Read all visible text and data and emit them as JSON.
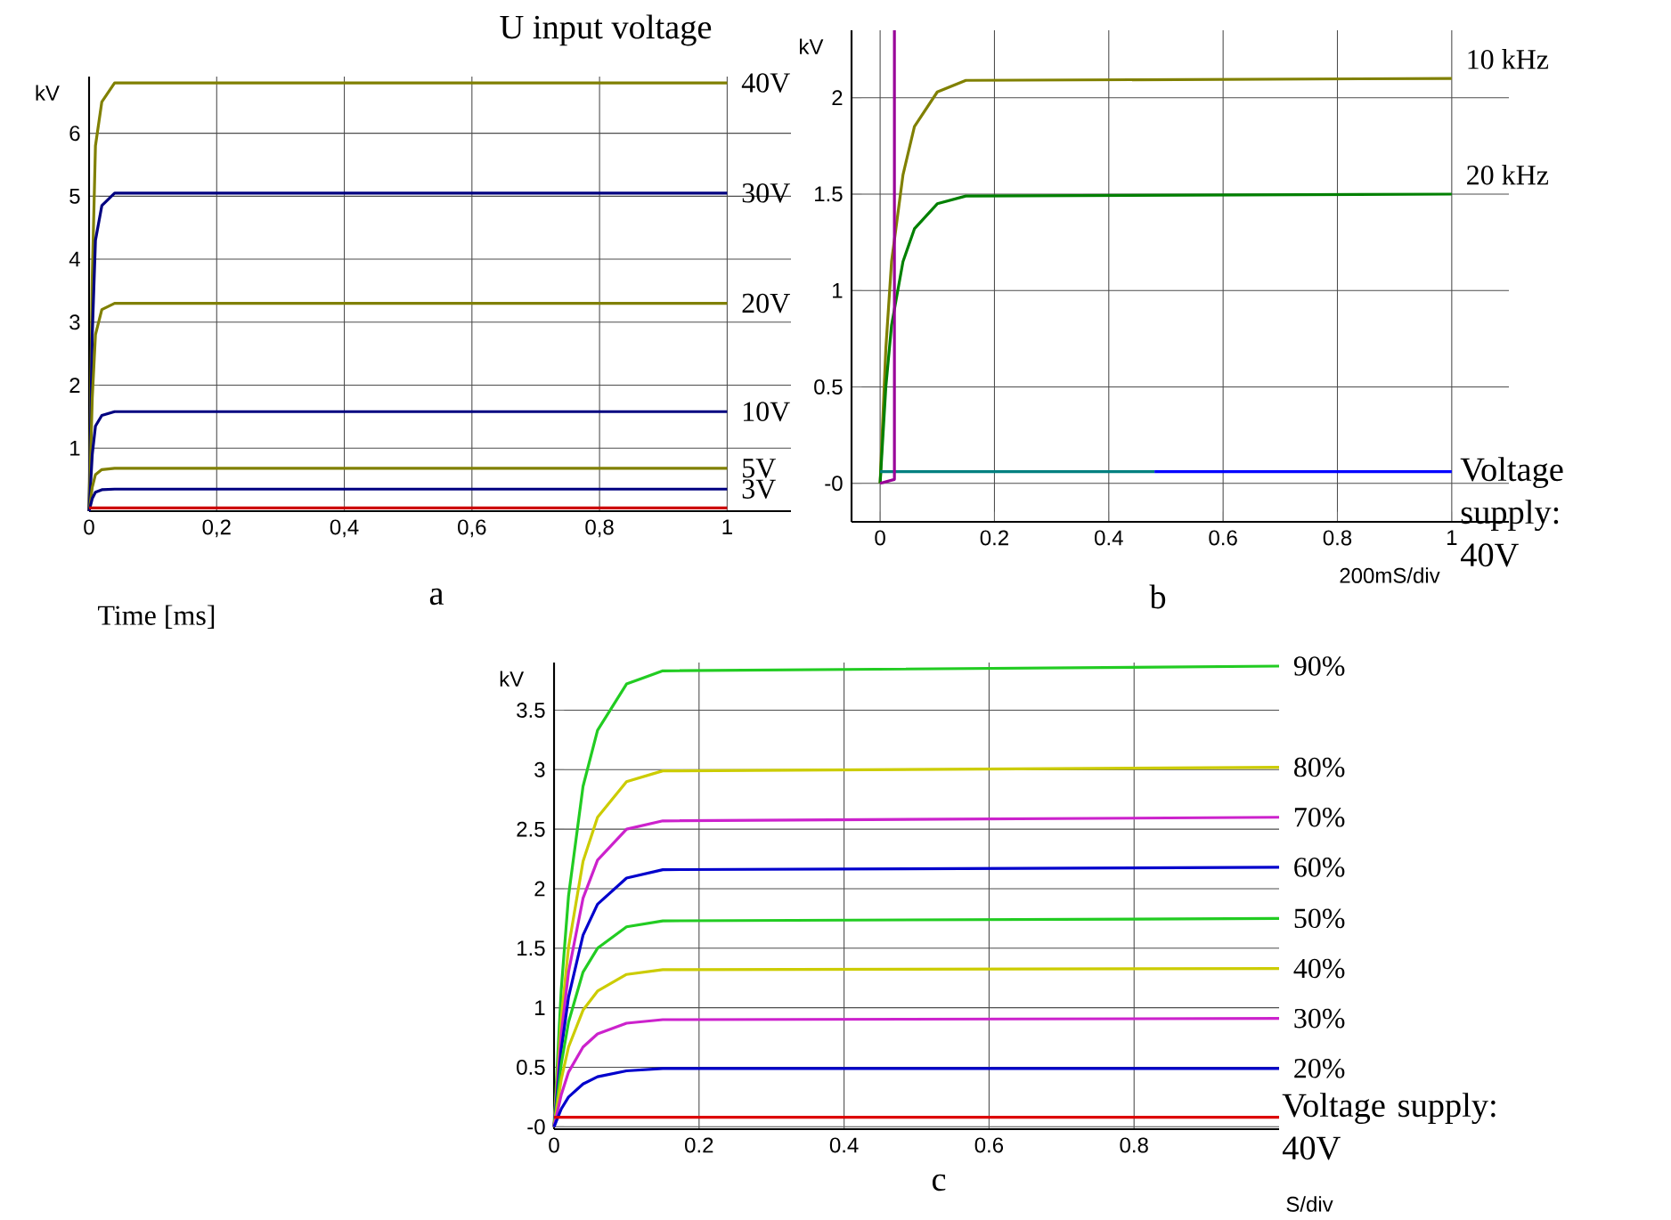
{
  "chart_data": [
    {
      "type": "line",
      "title": "U input voltage",
      "xlabel": "Time [ms]",
      "ylabel": "kV",
      "xlim": [
        0,
        1.1
      ],
      "ylim": [
        0,
        6.9
      ],
      "grid": true,
      "xticks": [
        0,
        {
          "value": 0.2,
          "label": "0,2"
        },
        {
          "value": 0.4,
          "label": "0,4"
        },
        {
          "value": 0.6,
          "label": "0,6"
        },
        {
          "value": 0.8,
          "label": "0,8"
        },
        1
      ],
      "yticks": [
        1,
        2,
        3,
        4,
        5,
        6
      ],
      "series": [
        {
          "name": "40V",
          "color": "#808000",
          "x": [
            0,
            0.005,
            0.01,
            0.02,
            0.04,
            1
          ],
          "values": [
            0,
            3.7,
            5.8,
            6.5,
            6.8,
            6.8
          ]
        },
        {
          "name": "30V",
          "color": "#000080",
          "x": [
            0,
            0.005,
            0.01,
            0.02,
            0.04,
            1
          ],
          "values": [
            0,
            2.8,
            4.3,
            4.85,
            5.05,
            5.05
          ]
        },
        {
          "name": "20V",
          "color": "#808000",
          "x": [
            0,
            0.005,
            0.01,
            0.02,
            0.04,
            1
          ],
          "values": [
            0,
            1.8,
            2.8,
            3.2,
            3.3,
            3.3
          ]
        },
        {
          "name": "10V",
          "color": "#000080",
          "x": [
            0,
            0.005,
            0.01,
            0.02,
            0.04,
            1
          ],
          "values": [
            0,
            0.9,
            1.35,
            1.52,
            1.58,
            1.58
          ]
        },
        {
          "name": "5V",
          "color": "#808000",
          "x": [
            0,
            0.005,
            0.01,
            0.02,
            0.04,
            1
          ],
          "values": [
            0,
            0.38,
            0.58,
            0.66,
            0.68,
            0.68
          ]
        },
        {
          "name": "3V",
          "color": "#000080",
          "x": [
            0,
            0.005,
            0.01,
            0.02,
            0.04,
            1
          ],
          "values": [
            0,
            0.2,
            0.3,
            0.34,
            0.35,
            0.35
          ]
        },
        {
          "color": "#cc0000",
          "x": [
            0,
            1
          ],
          "values": [
            0.05,
            0.05
          ]
        }
      ],
      "annotations": [
        "a"
      ]
    },
    {
      "type": "line",
      "ylabel": "kV",
      "xlim": [
        -0.05,
        1.1
      ],
      "ylim": [
        -0.2,
        2.35
      ],
      "grid": true,
      "xticks": [
        0,
        0.2,
        0.4,
        0.6,
        0.8,
        1
      ],
      "yticks": [
        {
          "value": 0,
          "label": "-0"
        },
        0.5,
        1,
        1.5,
        2
      ],
      "series": [
        {
          "name": "10 kHz",
          "color": "#808000",
          "x": [
            0,
            0.01,
            0.02,
            0.04,
            0.06,
            0.1,
            0.15,
            1
          ],
          "values": [
            0,
            0.7,
            1.15,
            1.6,
            1.85,
            2.03,
            2.09,
            2.1
          ]
        },
        {
          "name": "20 kHz",
          "color": "#008000",
          "x": [
            0,
            0.01,
            0.02,
            0.04,
            0.06,
            0.1,
            0.15,
            1
          ],
          "values": [
            0,
            0.5,
            0.82,
            1.15,
            1.32,
            1.45,
            1.49,
            1.5
          ]
        },
        {
          "color": "#008080",
          "x": [
            0,
            0.48
          ],
          "values": [
            0.06,
            0.06
          ]
        },
        {
          "color": "#0000ff",
          "x": [
            0.48,
            1
          ],
          "values": [
            0.06,
            0.06
          ]
        },
        {
          "color": "#990099",
          "x": [
            0,
            0.025,
            0.025
          ],
          "values": [
            0,
            0.02,
            2.35
          ]
        }
      ],
      "annotations": [
        "Voltage supply: 40V",
        "200mS/div",
        "b"
      ]
    },
    {
      "type": "line",
      "ylabel": "kV",
      "xlim": [
        0,
        1
      ],
      "ylim": [
        -0.02,
        3.9
      ],
      "grid": true,
      "xticks": [
        0,
        0.2,
        0.4,
        0.6,
        0.8
      ],
      "yticks": [
        {
          "value": 0,
          "label": "-0"
        },
        0.5,
        1,
        1.5,
        2,
        2.5,
        3,
        3.5
      ],
      "series": [
        {
          "name": "90%",
          "color": "#22cc22",
          "x": [
            0,
            0.01,
            0.02,
            0.04,
            0.06,
            0.1,
            0.15,
            1
          ],
          "values": [
            0,
            1.16,
            1.94,
            2.86,
            3.33,
            3.72,
            3.83,
            3.87
          ]
        },
        {
          "name": "80%",
          "color": "#cccc00",
          "x": [
            0,
            0.01,
            0.02,
            0.04,
            0.06,
            0.1,
            0.15,
            1
          ],
          "values": [
            0,
            0.91,
            1.51,
            2.23,
            2.6,
            2.9,
            2.99,
            3.02
          ]
        },
        {
          "name": "70%",
          "color": "#cc22cc",
          "x": [
            0,
            0.01,
            0.02,
            0.04,
            0.06,
            0.1,
            0.15,
            1
          ],
          "values": [
            0,
            0.78,
            1.3,
            1.92,
            2.24,
            2.5,
            2.57,
            2.6
          ]
        },
        {
          "name": "60%",
          "color": "#0000cc",
          "x": [
            0,
            0.01,
            0.02,
            0.04,
            0.06,
            0.1,
            0.15,
            1
          ],
          "values": [
            0,
            0.65,
            1.09,
            1.61,
            1.87,
            2.09,
            2.16,
            2.18
          ]
        },
        {
          "name": "50%",
          "color": "#22cc22",
          "x": [
            0,
            0.01,
            0.02,
            0.04,
            0.06,
            0.1,
            0.15,
            1
          ],
          "values": [
            0,
            0.53,
            0.88,
            1.3,
            1.5,
            1.68,
            1.73,
            1.75
          ]
        },
        {
          "name": "40%",
          "color": "#cccc00",
          "x": [
            0,
            0.01,
            0.02,
            0.04,
            0.06,
            0.1,
            0.15,
            1
          ],
          "values": [
            0,
            0.4,
            0.67,
            0.98,
            1.14,
            1.28,
            1.32,
            1.33
          ]
        },
        {
          "name": "30%",
          "color": "#cc22cc",
          "x": [
            0,
            0.01,
            0.02,
            0.04,
            0.06,
            0.1,
            0.15,
            1
          ],
          "values": [
            0,
            0.27,
            0.46,
            0.67,
            0.78,
            0.87,
            0.9,
            0.91
          ]
        },
        {
          "name": "20%",
          "color": "#0000cc",
          "x": [
            0,
            0.01,
            0.02,
            0.04,
            0.06,
            0.1,
            0.15,
            1
          ],
          "values": [
            0,
            0.15,
            0.25,
            0.36,
            0.42,
            0.47,
            0.49,
            0.49
          ]
        },
        {
          "color": "#dd0000",
          "x": [
            0,
            1
          ],
          "values": [
            0.08,
            0.08
          ]
        }
      ],
      "annotations": [
        "Voltage supply: 40V",
        "S/div",
        "c"
      ]
    }
  ]
}
